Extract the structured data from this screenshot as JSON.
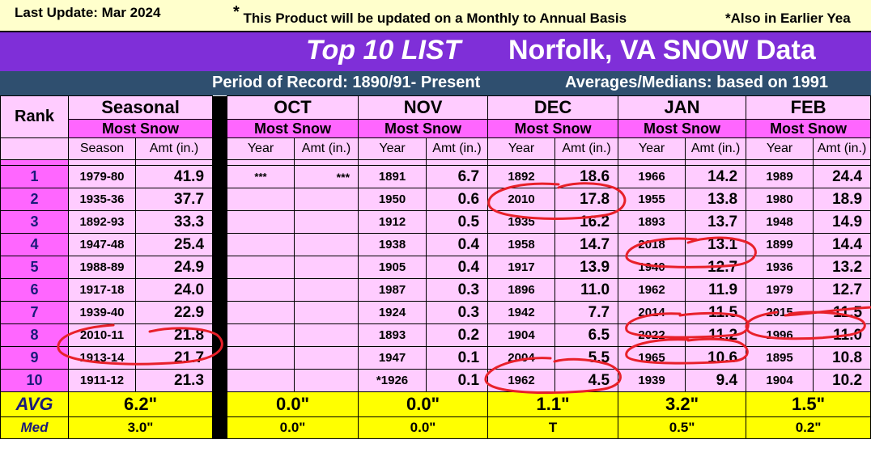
{
  "top": {
    "last_update": "Last Update:  Mar 2024",
    "star": "*",
    "product_note": "This Product will be updated on a Monthly to Annual Basis",
    "earlier_note": "*Also in Earlier Yea"
  },
  "title": {
    "left": "Top 10 LIST",
    "right": "Norfolk, VA SNOW Data"
  },
  "subtitle": {
    "period": "Period of Record: 1890/91- Present",
    "averages": "Averages/Medians: based on 1991"
  },
  "headers": {
    "rank": "Rank",
    "groups": [
      "Seasonal",
      "OCT",
      "NOV",
      "DEC",
      "JAN",
      "FEB"
    ],
    "most_snow": "Most Snow",
    "season_col": "Season",
    "year_col": "Year",
    "amt_col": "Amt (in.)"
  },
  "rows": [
    {
      "rank": "1",
      "cells": [
        [
          "1979-80",
          "41.9"
        ],
        [
          "***",
          "***"
        ],
        [
          "1891",
          "6.7"
        ],
        [
          "1892",
          "18.6"
        ],
        [
          "1966",
          "14.2"
        ],
        [
          "1989",
          "24.4"
        ]
      ]
    },
    {
      "rank": "2",
      "cells": [
        [
          "1935-36",
          "37.7"
        ],
        [
          "",
          ""
        ],
        [
          "1950",
          "0.6"
        ],
        [
          "2010",
          "17.8"
        ],
        [
          "1955",
          "13.8"
        ],
        [
          "1980",
          "18.9"
        ]
      ]
    },
    {
      "rank": "3",
      "cells": [
        [
          "1892-93",
          "33.3"
        ],
        [
          "",
          ""
        ],
        [
          "1912",
          "0.5"
        ],
        [
          "1935",
          "16.2"
        ],
        [
          "1893",
          "13.7"
        ],
        [
          "1948",
          "14.9"
        ]
      ]
    },
    {
      "rank": "4",
      "cells": [
        [
          "1947-48",
          "25.4"
        ],
        [
          "",
          ""
        ],
        [
          "1938",
          "0.4"
        ],
        [
          "1958",
          "14.7"
        ],
        [
          "2018",
          "13.1"
        ],
        [
          "1899",
          "14.4"
        ]
      ]
    },
    {
      "rank": "5",
      "cells": [
        [
          "1988-89",
          "24.9"
        ],
        [
          "",
          ""
        ],
        [
          "1905",
          "0.4"
        ],
        [
          "1917",
          "13.9"
        ],
        [
          "1940",
          "12.7"
        ],
        [
          "1936",
          "13.2"
        ]
      ]
    },
    {
      "rank": "6",
      "cells": [
        [
          "1917-18",
          "24.0"
        ],
        [
          "",
          ""
        ],
        [
          "1987",
          "0.3"
        ],
        [
          "1896",
          "11.0"
        ],
        [
          "1962",
          "11.9"
        ],
        [
          "1979",
          "12.7"
        ]
      ]
    },
    {
      "rank": "7",
      "cells": [
        [
          "1939-40",
          "22.9"
        ],
        [
          "",
          ""
        ],
        [
          "1924",
          "0.3"
        ],
        [
          "1942",
          "7.7"
        ],
        [
          "2014",
          "11.5"
        ],
        [
          "2015",
          "11.5"
        ]
      ]
    },
    {
      "rank": "8",
      "cells": [
        [
          "2010-11",
          "21.8"
        ],
        [
          "",
          ""
        ],
        [
          "1893",
          "0.2"
        ],
        [
          "1904",
          "6.5"
        ],
        [
          "2022",
          "11.2"
        ],
        [
          "1996",
          "11.0"
        ]
      ]
    },
    {
      "rank": "9",
      "cells": [
        [
          "1913-14",
          "21.7"
        ],
        [
          "",
          ""
        ],
        [
          "1947",
          "0.1"
        ],
        [
          "2004",
          "5.5"
        ],
        [
          "1965",
          "10.6"
        ],
        [
          "1895",
          "10.8"
        ]
      ]
    },
    {
      "rank": "10",
      "cells": [
        [
          "1911-12",
          "21.3"
        ],
        [
          "",
          ""
        ],
        [
          "*1926",
          "0.1"
        ],
        [
          "1962",
          "4.5"
        ],
        [
          "1939",
          "9.4"
        ],
        [
          "1904",
          "10.2"
        ]
      ]
    }
  ],
  "avg": {
    "label": "AVG",
    "values": [
      "6.2\"",
      "0.0\"",
      "0.0\"",
      "1.1\"",
      "3.2\"",
      "1.5\""
    ]
  },
  "med": {
    "label": "Med",
    "values": [
      "3.0\"",
      "0.0\"",
      "0.0\"",
      "T",
      "0.5\"",
      "0.2\""
    ]
  },
  "annotation_color": "#e8202a"
}
